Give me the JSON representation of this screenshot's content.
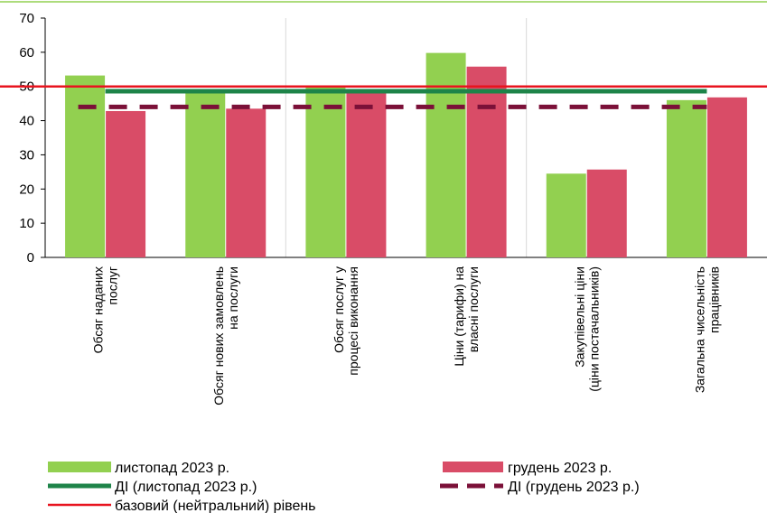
{
  "chart_data": {
    "type": "bar",
    "categories": [
      [
        "Обсяг наданих",
        "послуг"
      ],
      [
        "Обсяг нових замовлень",
        "на послуги"
      ],
      [
        "Обсяг послуг у",
        "процесі виконання"
      ],
      [
        "Ціни (тарифи) на",
        "власні послуги"
      ],
      [
        "Закупівельні ціни",
        "(ціни постачальників)"
      ],
      [
        "Загальна чисельність",
        "працівників"
      ]
    ],
    "series": [
      {
        "name": "листопад 2023 р.",
        "values": [
          53.2,
          48.8,
          50.2,
          59.8,
          24.5,
          46.0
        ],
        "color": "#92d050"
      },
      {
        "name": "грудень 2023 р.",
        "values": [
          42.8,
          43.5,
          49.0,
          55.8,
          25.7,
          46.8
        ],
        "color": "#d94c67"
      }
    ],
    "lines": [
      {
        "name": "ДІ (листопад 2023 р.)",
        "value": 48.6,
        "color": "#1e8449",
        "style": "solid"
      },
      {
        "name": "ДІ (грудень 2023 р.)",
        "value": 44.0,
        "color": "#7b1038",
        "style": "dashed"
      },
      {
        "name": "базовий (нейтральний) рівень",
        "value": 50,
        "color": "#e8141f",
        "style": "solid"
      }
    ],
    "ylim": [
      0,
      70
    ],
    "yticks": [
      0,
      10,
      20,
      30,
      40,
      50,
      60,
      70
    ],
    "grid": "vertical separators between category pairs",
    "legend_position": "bottom"
  }
}
